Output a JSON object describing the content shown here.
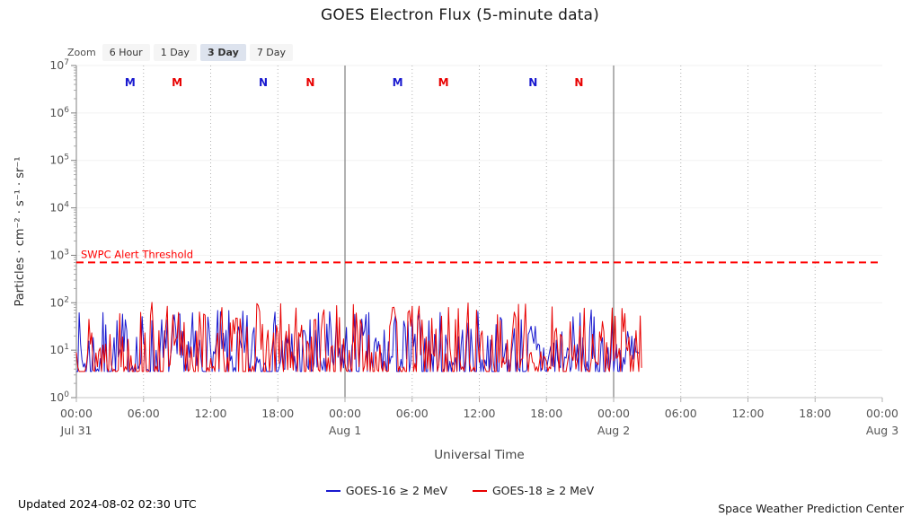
{
  "title": "GOES Electron Flux (5-minute data)",
  "zoom": {
    "label": "Zoom",
    "buttons": [
      {
        "label": "6 Hour",
        "selected": false
      },
      {
        "label": "1 Day",
        "selected": false
      },
      {
        "label": "3 Day",
        "selected": true
      },
      {
        "label": "7 Day",
        "selected": false
      }
    ]
  },
  "chart_data": {
    "type": "line",
    "title": "GOES Electron Flux (5-minute data)",
    "xlabel": "Universal Time",
    "ylabel": "Particles · cm⁻² · s⁻¹ · sr⁻¹",
    "y_scale": "log",
    "y_tick_exponents": [
      0,
      1,
      2,
      3,
      4,
      5,
      6,
      7
    ],
    "x_range_hours": [
      0,
      72
    ],
    "x_ticks": [
      {
        "hour": 0,
        "time": "00:00",
        "day": "Jul 31"
      },
      {
        "hour": 6,
        "time": "06:00"
      },
      {
        "hour": 12,
        "time": "12:00"
      },
      {
        "hour": 18,
        "time": "18:00"
      },
      {
        "hour": 24,
        "time": "00:00",
        "day": "Aug 1"
      },
      {
        "hour": 30,
        "time": "06:00"
      },
      {
        "hour": 36,
        "time": "12:00"
      },
      {
        "hour": 42,
        "time": "18:00"
      },
      {
        "hour": 48,
        "time": "00:00",
        "day": "Aug 2"
      },
      {
        "hour": 54,
        "time": "06:00"
      },
      {
        "hour": 60,
        "time": "12:00"
      },
      {
        "hour": 66,
        "time": "18:00"
      },
      {
        "hour": 72,
        "time": "00:00",
        "day": "Aug 3"
      }
    ],
    "threshold": {
      "label": "SWPC Alert Threshold",
      "value_exponent": 2.85,
      "color": "#ff0000"
    },
    "series": [
      {
        "name": "GOES-16 ≥ 2 MeV",
        "color": "#1818cf",
        "start_hour": 0,
        "end_hour": 50.3,
        "step_hours": 0.125,
        "seed": 7,
        "floor_exponent": 0.55,
        "max_exponent": 1.85,
        "floor_prob": 0.28,
        "shape": 1.5,
        "log10_flux_range": [
          0.55,
          1.85
        ]
      },
      {
        "name": "GOES-18 ≥ 2 MeV",
        "color": "#e80000",
        "start_hour": 0,
        "end_hour": 50.5,
        "step_hours": 0.125,
        "seed": 13,
        "floor_exponent": 0.55,
        "max_exponent": 2.02,
        "floor_prob": 0.22,
        "shape": 1.6,
        "log10_flux_range": [
          0.55,
          2.02
        ]
      }
    ],
    "satellite_markers": [
      {
        "hour": 4.8,
        "label": "M",
        "series": 0
      },
      {
        "hour": 9.0,
        "label": "M",
        "series": 1
      },
      {
        "hour": 16.7,
        "label": "N",
        "series": 0
      },
      {
        "hour": 20.9,
        "label": "N",
        "series": 1
      },
      {
        "hour": 28.7,
        "label": "M",
        "series": 0
      },
      {
        "hour": 32.8,
        "label": "M",
        "series": 1
      },
      {
        "hour": 40.8,
        "label": "N",
        "series": 0
      },
      {
        "hour": 44.9,
        "label": "N",
        "series": 1
      }
    ],
    "legend_position": "bottom",
    "grid": {
      "vertical_dotted_hours": [
        6,
        12,
        18,
        30,
        36,
        42,
        54,
        60,
        66
      ],
      "vertical_solid_hours": [
        24,
        48
      ]
    }
  },
  "footer": {
    "updated": "Updated 2024-08-02 02:30 UTC",
    "source": "Space Weather Prediction Center"
  }
}
